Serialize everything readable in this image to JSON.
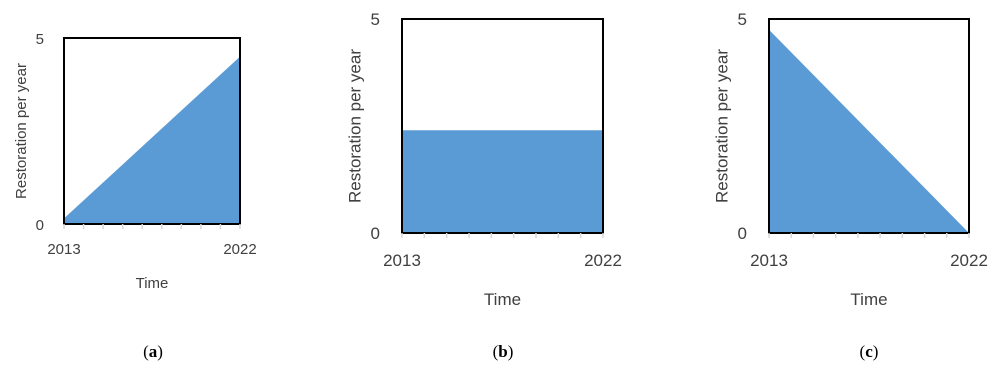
{
  "colors": {
    "area": "#5b9bd5",
    "frame": "#000000",
    "text": "#404040",
    "tick": "#d9d9d9"
  },
  "chart_data": [
    {
      "type": "area",
      "panel_label": [
        "(",
        "a",
        ")"
      ],
      "x": [
        2013,
        2022
      ],
      "y": [
        0.15,
        4.5
      ],
      "xticks": [
        "2013",
        "2022"
      ],
      "yticks": [
        "0",
        "5"
      ],
      "xlabel": "Time",
      "ylabel": "Restoration per year",
      "ylim": [
        0,
        5
      ],
      "xlim": [
        2013,
        2022
      ],
      "grid": false
    },
    {
      "type": "area",
      "panel_label": [
        "(",
        "b",
        ")"
      ],
      "x": [
        2013,
        2022
      ],
      "y": [
        2.4,
        2.4
      ],
      "xticks": [
        "2013",
        "2022"
      ],
      "yticks": [
        "0",
        "5"
      ],
      "xlabel": "Time",
      "ylabel": "Restoration per year",
      "ylim": [
        0,
        5
      ],
      "xlim": [
        2013,
        2022
      ],
      "grid": false
    },
    {
      "type": "area",
      "panel_label": [
        "(",
        "c",
        ")"
      ],
      "x": [
        2013,
        2022
      ],
      "y": [
        4.75,
        0
      ],
      "xticks": [
        "2013",
        "2022"
      ],
      "yticks": [
        "0",
        "5"
      ],
      "xlabel": "Time",
      "ylabel": "Restoration per year",
      "ylim": [
        0,
        5
      ],
      "xlim": [
        2013,
        2022
      ],
      "grid": false
    }
  ]
}
